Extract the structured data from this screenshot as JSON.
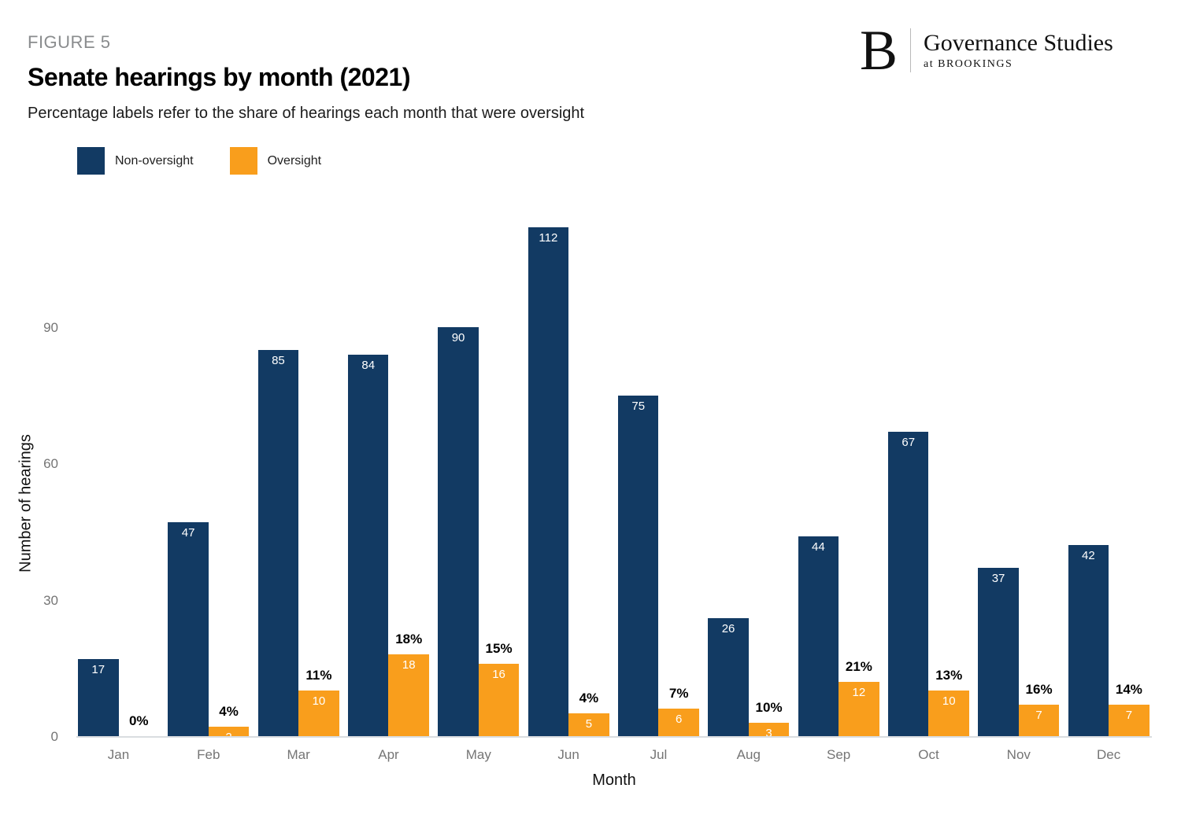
{
  "header": {
    "figure_label": "FIGURE 5",
    "title": "Senate hearings by month (2021)",
    "subtitle": "Percentage labels refer to the share of hearings each month that were oversight"
  },
  "logo": {
    "letter": "B",
    "name": "Governance Studies",
    "subname": "at BROOKINGS"
  },
  "colors": {
    "non_oversight": "#123a63",
    "oversight": "#f99e1c",
    "axis_text": "#757575",
    "baseline": "#dadde0"
  },
  "legend": {
    "items": [
      {
        "label": "Non-oversight",
        "color": "#123a63"
      },
      {
        "label": "Oversight",
        "color": "#f99e1c"
      }
    ]
  },
  "chart_data": {
    "type": "bar",
    "title": "Senate hearings by month (2021)",
    "xlabel": "Month",
    "ylabel": "Number of hearings",
    "categories": [
      "Jan",
      "Feb",
      "Mar",
      "Apr",
      "May",
      "Jun",
      "Jul",
      "Aug",
      "Sep",
      "Oct",
      "Nov",
      "Dec"
    ],
    "series": [
      {
        "name": "Non-oversight",
        "color": "#123a63",
        "values": [
          17,
          47,
          85,
          84,
          90,
          112,
          75,
          26,
          44,
          67,
          37,
          42
        ]
      },
      {
        "name": "Oversight",
        "color": "#f99e1c",
        "values": [
          0,
          2,
          10,
          18,
          16,
          5,
          6,
          3,
          12,
          10,
          7,
          7
        ]
      }
    ],
    "percent_labels": [
      "0%",
      "4%",
      "11%",
      "18%",
      "15%",
      "4%",
      "7%",
      "10%",
      "21%",
      "13%",
      "16%",
      "14%"
    ],
    "yticks": [
      0,
      30,
      60,
      90
    ],
    "ylim": [
      0,
      117
    ],
    "grid": false,
    "legend_position": "top-left"
  }
}
